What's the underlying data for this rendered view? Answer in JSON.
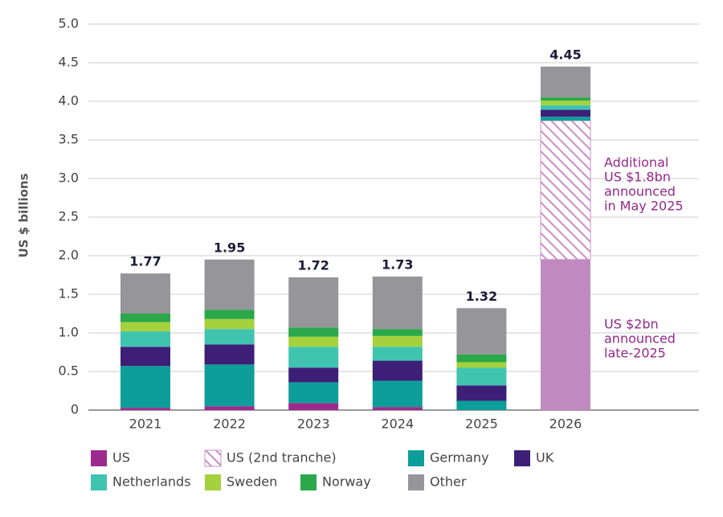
{
  "chart_data": {
    "type": "stacked_bar",
    "ylabel": "US $ billions",
    "categories": [
      "2021",
      "2022",
      "2023",
      "2024",
      "2025",
      "2026"
    ],
    "series": [
      {
        "name": "US",
        "color": "#9c2a8f",
        "colors": [
          "#9c2a8f",
          "#9c2a8f",
          "#9c2a8f",
          "#9c2a8f",
          "#9c2a8f",
          "#c08ac0"
        ],
        "values": [
          0.03,
          0.05,
          0.09,
          0.04,
          0,
          1.95
        ]
      },
      {
        "name": "US (2nd tranche)",
        "color": "#c98fc7",
        "pattern": "hatch",
        "values": [
          0,
          0,
          0,
          0,
          0,
          1.8
        ]
      },
      {
        "name": "Germany",
        "color": "#0d9e9a",
        "values": [
          0.54,
          0.54,
          0.27,
          0.34,
          0.12,
          0.05
        ]
      },
      {
        "name": "UK",
        "color": "#3d1f78",
        "values": [
          0.25,
          0.26,
          0.19,
          0.26,
          0.2,
          0.09
        ]
      },
      {
        "name": "Netherlands",
        "color": "#40c4b0",
        "values": [
          0.2,
          0.2,
          0.27,
          0.18,
          0.23,
          0.06
        ]
      },
      {
        "name": "Sweden",
        "color": "#a5d13c",
        "values": [
          0.12,
          0.13,
          0.13,
          0.14,
          0.07,
          0.06
        ]
      },
      {
        "name": "Norway",
        "color": "#2aa84a",
        "values": [
          0.11,
          0.12,
          0.12,
          0.09,
          0.1,
          0.04
        ]
      },
      {
        "name": "Other",
        "color": "#95959a",
        "values": [
          0.52,
          0.65,
          0.65,
          0.68,
          0.6,
          0.4
        ]
      }
    ],
    "totals": [
      1.77,
      1.95,
      1.72,
      1.73,
      1.32,
      4.45
    ],
    "annotations": [
      {
        "lines": [
          "Additional",
          "US $1.8bn",
          "announced",
          "in May 2025"
        ],
        "color": "#93288a"
      },
      {
        "lines": [
          "US $2bn",
          "announced",
          "late-2025"
        ],
        "color": "#93288a"
      }
    ],
    "ylim": [
      0,
      5
    ],
    "yticks": [
      0,
      {
        "value": 0.5,
        "label": "0.5"
      },
      {
        "value": 1,
        "label": "1.0"
      },
      {
        "value": 1.5,
        "label": "1.5"
      },
      {
        "value": 2,
        "label": "2.0"
      },
      {
        "value": 2.5,
        "label": "2.5"
      },
      {
        "value": 3,
        "label": "3.0"
      },
      {
        "value": 3.5,
        "label": "3.5"
      },
      {
        "value": 4,
        "label": "4.0"
      },
      {
        "value": 4.5,
        "label": "4.5"
      },
      {
        "value": 5,
        "label": "5.0"
      }
    ],
    "grid": true,
    "legend": "bottom"
  }
}
